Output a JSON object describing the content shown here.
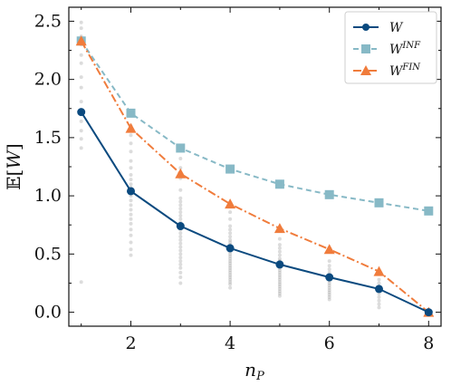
{
  "chart_data": {
    "type": "line",
    "xlabel": "n_P",
    "ylabel": "𝔼[W]",
    "xlim": [
      0.75,
      8.25
    ],
    "ylim": [
      -0.12,
      2.62
    ],
    "xticks": [
      2,
      4,
      6,
      8
    ],
    "yticks": [
      0.0,
      0.5,
      1.0,
      1.5,
      2.0,
      2.5
    ],
    "xtick_labels": [
      "2",
      "4",
      "6",
      "8"
    ],
    "ytick_labels": [
      "0.0",
      "0.5",
      "1.0",
      "1.5",
      "2.0",
      "2.5"
    ],
    "grid": false,
    "legend_position": "top-right",
    "series": [
      {
        "name": "W",
        "color": "#0b4a7f",
        "linestyle": "solid",
        "marker": "circle",
        "x": [
          1,
          2,
          3,
          4,
          5,
          6,
          7,
          8
        ],
        "values": [
          1.72,
          1.04,
          0.74,
          0.55,
          0.41,
          0.3,
          0.2,
          0.0
        ]
      },
      {
        "name": "W^INF",
        "color": "#87b9c6",
        "linestyle": "dashed",
        "marker": "square",
        "x": [
          1,
          2,
          3,
          4,
          5,
          6,
          7,
          8
        ],
        "values": [
          2.33,
          1.71,
          1.41,
          1.23,
          1.1,
          1.01,
          0.94,
          0.87
        ]
      },
      {
        "name": "W^FIN",
        "color": "#f07c3c",
        "linestyle": "dashdot",
        "marker": "triangle",
        "x": [
          1,
          2,
          3,
          4,
          5,
          6,
          7,
          8
        ],
        "values": [
          2.33,
          1.58,
          1.19,
          0.93,
          0.72,
          0.54,
          0.35,
          0.0
        ]
      }
    ],
    "scatter_samples": {
      "color": "#9a9a9a",
      "points": [
        [
          1,
          2.49
        ],
        [
          1,
          2.44
        ],
        [
          1,
          2.37
        ],
        [
          1,
          2.3
        ],
        [
          1,
          2.21
        ],
        [
          1,
          2.14
        ],
        [
          1,
          2.02
        ],
        [
          1,
          1.93
        ],
        [
          1,
          1.81
        ],
        [
          1,
          1.73
        ],
        [
          1,
          1.64
        ],
        [
          1,
          1.56
        ],
        [
          1,
          1.49
        ],
        [
          1,
          1.41
        ],
        [
          1,
          0.26
        ],
        [
          2,
          1.6
        ],
        [
          2,
          1.52
        ],
        [
          2,
          1.45
        ],
        [
          2,
          1.38
        ],
        [
          2,
          1.3
        ],
        [
          2,
          1.24
        ],
        [
          2,
          1.18
        ],
        [
          2,
          1.14
        ],
        [
          2,
          1.1
        ],
        [
          2,
          1.07
        ],
        [
          2,
          1.04
        ],
        [
          2,
          1.0
        ],
        [
          2,
          0.96
        ],
        [
          2,
          0.92
        ],
        [
          2,
          0.88
        ],
        [
          2,
          0.84
        ],
        [
          2,
          0.8
        ],
        [
          2,
          0.76
        ],
        [
          2,
          0.71
        ],
        [
          2,
          0.66
        ],
        [
          2,
          0.6
        ],
        [
          2,
          0.54
        ],
        [
          2,
          0.49
        ],
        [
          3,
          1.32
        ],
        [
          3,
          1.24
        ],
        [
          3,
          1.15
        ],
        [
          3,
          1.05
        ],
        [
          3,
          0.98
        ],
        [
          3,
          0.95
        ],
        [
          3,
          0.92
        ],
        [
          3,
          0.89
        ],
        [
          3,
          0.86
        ],
        [
          3,
          0.83
        ],
        [
          3,
          0.8
        ],
        [
          3,
          0.77
        ],
        [
          3,
          0.74
        ],
        [
          3,
          0.71
        ],
        [
          3,
          0.68
        ],
        [
          3,
          0.65
        ],
        [
          3,
          0.62
        ],
        [
          3,
          0.59
        ],
        [
          3,
          0.56
        ],
        [
          3,
          0.53
        ],
        [
          3,
          0.5
        ],
        [
          3,
          0.47
        ],
        [
          3,
          0.44
        ],
        [
          3,
          0.41
        ],
        [
          3,
          0.38
        ],
        [
          3,
          0.34
        ],
        [
          3,
          0.3
        ],
        [
          3,
          0.25
        ],
        [
          4,
          0.92
        ],
        [
          4,
          0.86
        ],
        [
          4,
          0.8
        ],
        [
          4,
          0.74
        ],
        [
          4,
          0.71
        ],
        [
          4,
          0.68
        ],
        [
          4,
          0.65
        ],
        [
          4,
          0.62
        ],
        [
          4,
          0.6
        ],
        [
          4,
          0.58
        ],
        [
          4,
          0.56
        ],
        [
          4,
          0.54
        ],
        [
          4,
          0.52
        ],
        [
          4,
          0.5
        ],
        [
          4,
          0.48
        ],
        [
          4,
          0.46
        ],
        [
          4,
          0.44
        ],
        [
          4,
          0.42
        ],
        [
          4,
          0.4
        ],
        [
          4,
          0.38
        ],
        [
          4,
          0.36
        ],
        [
          4,
          0.34
        ],
        [
          4,
          0.32
        ],
        [
          4,
          0.3
        ],
        [
          4,
          0.28
        ],
        [
          4,
          0.26
        ],
        [
          4,
          0.24
        ],
        [
          4,
          0.21
        ],
        [
          5,
          0.63
        ],
        [
          5,
          0.58
        ],
        [
          5,
          0.55
        ],
        [
          5,
          0.52
        ],
        [
          5,
          0.49
        ],
        [
          5,
          0.46
        ],
        [
          5,
          0.44
        ],
        [
          5,
          0.42
        ],
        [
          5,
          0.4
        ],
        [
          5,
          0.38
        ],
        [
          5,
          0.36
        ],
        [
          5,
          0.34
        ],
        [
          5,
          0.32
        ],
        [
          5,
          0.3
        ],
        [
          5,
          0.28
        ],
        [
          5,
          0.26
        ],
        [
          5,
          0.24
        ],
        [
          5,
          0.22
        ],
        [
          5,
          0.2
        ],
        [
          5,
          0.18
        ],
        [
          5,
          0.16
        ],
        [
          5,
          0.14
        ],
        [
          6,
          0.44
        ],
        [
          6,
          0.4
        ],
        [
          6,
          0.37
        ],
        [
          6,
          0.34
        ],
        [
          6,
          0.31
        ],
        [
          6,
          0.29
        ],
        [
          6,
          0.27
        ],
        [
          6,
          0.25
        ],
        [
          6,
          0.23
        ],
        [
          6,
          0.21
        ],
        [
          6,
          0.19
        ],
        [
          6,
          0.17
        ],
        [
          6,
          0.15
        ],
        [
          6,
          0.13
        ],
        [
          6,
          0.11
        ],
        [
          7,
          0.28
        ],
        [
          7,
          0.25
        ],
        [
          7,
          0.22
        ],
        [
          7,
          0.19
        ],
        [
          7,
          0.16
        ],
        [
          7,
          0.13
        ],
        [
          7,
          0.1
        ],
        [
          7,
          0.07
        ],
        [
          7,
          0.04
        ],
        [
          8,
          0.01
        ],
        [
          8,
          0.0
        ]
      ]
    }
  }
}
